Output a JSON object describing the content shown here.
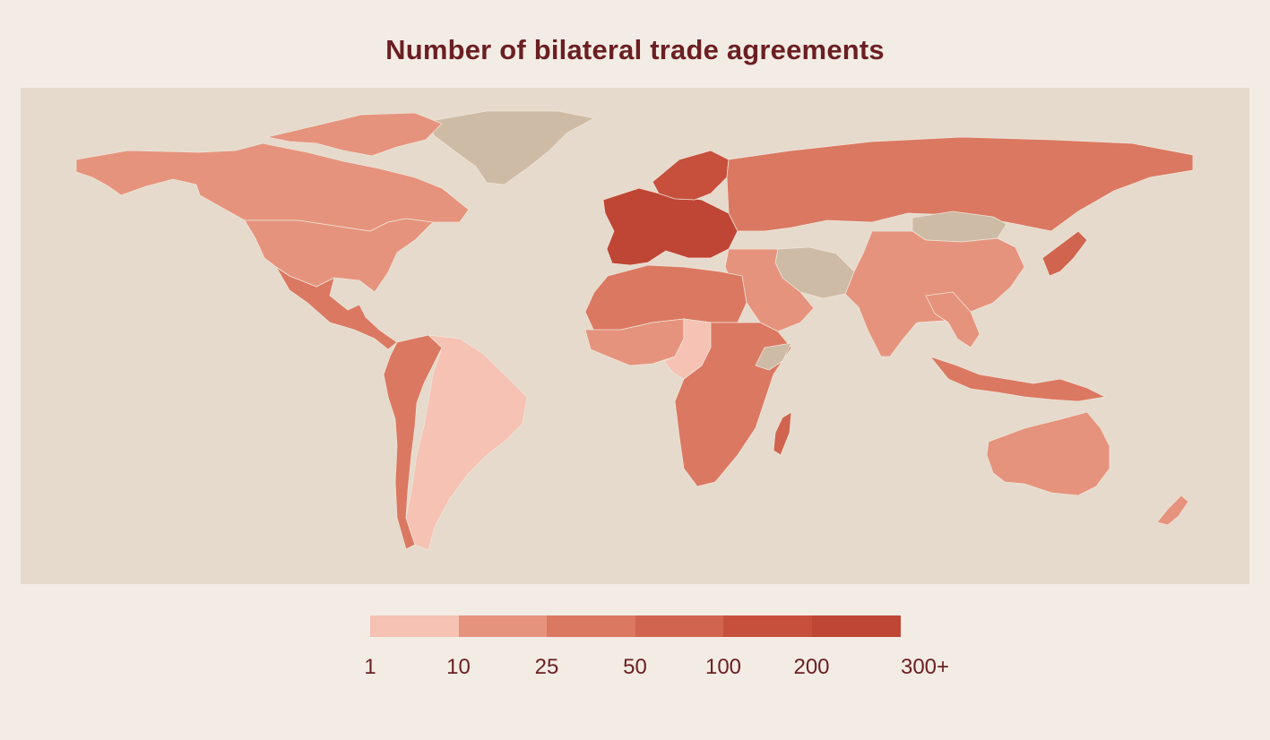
{
  "title": "Number of bilateral trade agreements",
  "colors": {
    "background": "#f3ece4",
    "ocean": "#e5dacb",
    "no_data": "#cdbba5",
    "title": "#6b1f22"
  },
  "legend": {
    "bins": [
      {
        "label": "1",
        "color": "#f5c2b4"
      },
      {
        "label": "10",
        "color": "#e6937d"
      },
      {
        "label": "25",
        "color": "#db7862"
      },
      {
        "label": "50",
        "color": "#d0644f"
      },
      {
        "label": "100",
        "color": "#c7503d"
      },
      {
        "label": "200",
        "color": "#bf4535"
      }
    ],
    "labels": [
      "1",
      "10",
      "25",
      "50",
      "100",
      "200",
      "300+"
    ]
  },
  "regions": [
    {
      "name": "greenland",
      "bin": "no-data"
    },
    {
      "name": "alaska-canada",
      "bin": "10"
    },
    {
      "name": "united-states",
      "bin": "10"
    },
    {
      "name": "mexico-central-america",
      "bin": "25"
    },
    {
      "name": "colombia-peru-chile",
      "bin": "25"
    },
    {
      "name": "brazil-argentina",
      "bin": "1"
    },
    {
      "name": "west-europe",
      "bin": "200"
    },
    {
      "name": "scandinavia",
      "bin": "100"
    },
    {
      "name": "russia",
      "bin": "25"
    },
    {
      "name": "north-africa",
      "bin": "25"
    },
    {
      "name": "west-africa",
      "bin": "10"
    },
    {
      "name": "central-africa",
      "bin": "1"
    },
    {
      "name": "east-south-africa",
      "bin": "25"
    },
    {
      "name": "madagascar",
      "bin": "50"
    },
    {
      "name": "middle-east",
      "bin": "10"
    },
    {
      "name": "iran-afghanistan",
      "bin": "no-data"
    },
    {
      "name": "mongolia",
      "bin": "no-data"
    },
    {
      "name": "china-india",
      "bin": "10"
    },
    {
      "name": "southeast-asia",
      "bin": "10"
    },
    {
      "name": "indonesia",
      "bin": "25"
    },
    {
      "name": "japan-korea",
      "bin": "50"
    },
    {
      "name": "australia",
      "bin": "10"
    },
    {
      "name": "new-zealand",
      "bin": "10"
    }
  ]
}
